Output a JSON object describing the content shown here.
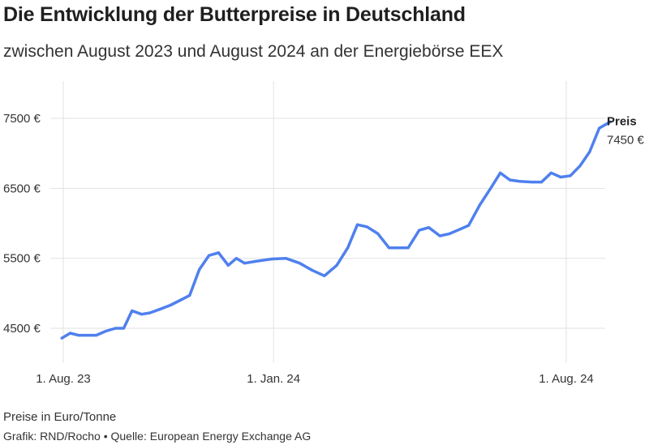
{
  "header": {
    "title": "Die Entwicklung der Butterpreise in Deutschland",
    "subtitle": "zwischen August 2023 und August 2024 an der Energiebörse EEX"
  },
  "footer": {
    "note": "Preise in Euro/Tonne",
    "credit": "Grafik: RND/Rocho • Quelle: European Energy Exchange AG"
  },
  "colors": {
    "line": "#4f80ee",
    "grid": "#e2e2e2"
  },
  "chart_data": {
    "type": "line",
    "title": "Die Entwicklung der Butterpreise in Deutschland",
    "subtitle": "zwischen August 2023 und August 2024 an der Energiebörse EEX",
    "ylabel": "Preise in Euro/Tonne",
    "ylim": [
      4000,
      8000
    ],
    "y_ticks": [
      4500,
      5500,
      6500,
      7500
    ],
    "y_tick_labels": [
      "4500 €",
      "5500 €",
      "6500 €",
      "7500 €"
    ],
    "x_ticks": [
      "2023-08-01",
      "2024-01-01",
      "2024-08-01"
    ],
    "x_tick_labels": [
      "1. Aug. 23",
      "1. Jan. 24",
      "1. Aug. 24"
    ],
    "grid": true,
    "series": [
      {
        "name": "Preis",
        "end_label": "7450 €",
        "points": [
          [
            "2023-07-31",
            4360
          ],
          [
            "2023-08-06",
            4430
          ],
          [
            "2023-08-12",
            4400
          ],
          [
            "2023-08-18",
            4400
          ],
          [
            "2023-08-25",
            4400
          ],
          [
            "2023-09-01",
            4460
          ],
          [
            "2023-09-08",
            4500
          ],
          [
            "2023-09-14",
            4500
          ],
          [
            "2023-09-20",
            4750
          ],
          [
            "2023-09-27",
            4700
          ],
          [
            "2023-10-03",
            4720
          ],
          [
            "2023-10-10",
            4770
          ],
          [
            "2023-10-18",
            4830
          ],
          [
            "2023-10-25",
            4900
          ],
          [
            "2023-11-01",
            4970
          ],
          [
            "2023-11-08",
            5340
          ],
          [
            "2023-11-15",
            5540
          ],
          [
            "2023-11-22",
            5580
          ],
          [
            "2023-11-29",
            5400
          ],
          [
            "2023-12-05",
            5500
          ],
          [
            "2023-12-11",
            5430
          ],
          [
            "2023-12-20",
            5460
          ],
          [
            "2023-12-31",
            5490
          ],
          [
            "2024-01-10",
            5500
          ],
          [
            "2024-01-20",
            5430
          ],
          [
            "2024-01-29",
            5330
          ],
          [
            "2024-02-07",
            5250
          ],
          [
            "2024-02-16",
            5400
          ],
          [
            "2024-02-24",
            5650
          ],
          [
            "2024-03-02",
            5980
          ],
          [
            "2024-03-09",
            5950
          ],
          [
            "2024-03-17",
            5850
          ],
          [
            "2024-03-25",
            5650
          ],
          [
            "2024-04-01",
            5650
          ],
          [
            "2024-04-08",
            5650
          ],
          [
            "2024-04-16",
            5900
          ],
          [
            "2024-04-23",
            5940
          ],
          [
            "2024-05-01",
            5820
          ],
          [
            "2024-05-08",
            5850
          ],
          [
            "2024-05-15",
            5910
          ],
          [
            "2024-05-22",
            5970
          ],
          [
            "2024-05-30",
            6260
          ],
          [
            "2024-06-07",
            6500
          ],
          [
            "2024-06-14",
            6720
          ],
          [
            "2024-06-21",
            6620
          ],
          [
            "2024-06-28",
            6600
          ],
          [
            "2024-07-07",
            6590
          ],
          [
            "2024-07-14",
            6590
          ],
          [
            "2024-07-21",
            6720
          ],
          [
            "2024-07-28",
            6660
          ],
          [
            "2024-08-04",
            6680
          ],
          [
            "2024-08-11",
            6820
          ],
          [
            "2024-08-18",
            7020
          ],
          [
            "2024-08-25",
            7360
          ],
          [
            "2024-09-02",
            7450
          ]
        ]
      }
    ]
  }
}
